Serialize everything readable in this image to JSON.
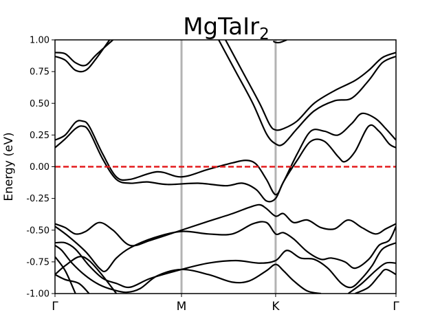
{
  "chart_data": {
    "type": "line",
    "title": "MgTaIr",
    "title_subscript": "2",
    "ylabel": "Energy (eV)",
    "xlabel": "",
    "ylim": [
      -1.0,
      1.0
    ],
    "xlim": [
      0,
      1
    ],
    "y_ticks": [
      "-1.00",
      "-0.75",
      "-0.50",
      "-0.25",
      "0.00",
      "0.25",
      "0.50",
      "0.75",
      "1.00"
    ],
    "y_tick_values": [
      -1.0,
      -0.75,
      -0.5,
      -0.25,
      0.0,
      0.25,
      0.5,
      0.75,
      1.0
    ],
    "k_points": [
      {
        "label": "Γ",
        "x": 0.0
      },
      {
        "label": "M",
        "x": 0.371
      },
      {
        "label": "K",
        "x": 0.647
      },
      {
        "label": "Γ",
        "x": 1.0
      }
    ],
    "fermi_level": 0.0,
    "colors": {
      "bands": "#000000",
      "fermi": "#e41a1c",
      "kpath": "#b3b3b3"
    },
    "grid": false,
    "series": [
      {
        "values": [
          [
            0.0,
            0.9
          ],
          [
            0.03,
            0.89
          ],
          [
            0.06,
            0.82
          ],
          [
            0.09,
            0.8
          ],
          [
            0.12,
            0.88
          ],
          [
            0.17,
            1.0
          ]
        ]
      },
      {
        "values": [
          [
            0.0,
            0.87
          ],
          [
            0.03,
            0.84
          ],
          [
            0.06,
            0.76
          ],
          [
            0.09,
            0.76
          ],
          [
            0.12,
            0.85
          ],
          [
            0.16,
            1.0
          ]
        ]
      },
      {
        "values": [
          [
            0.0,
            0.21
          ],
          [
            0.03,
            0.25
          ],
          [
            0.06,
            0.35
          ],
          [
            0.08,
            0.36
          ],
          [
            0.1,
            0.32
          ],
          [
            0.14,
            0.1
          ],
          [
            0.18,
            -0.08
          ],
          [
            0.22,
            -0.1
          ],
          [
            0.3,
            -0.04
          ],
          [
            0.371,
            -0.08
          ],
          [
            0.45,
            -0.02
          ],
          [
            0.52,
            0.03
          ],
          [
            0.56,
            0.05
          ],
          [
            0.59,
            0.02
          ],
          [
            0.62,
            -0.1
          ],
          [
            0.647,
            -0.22
          ],
          [
            0.67,
            -0.12
          ],
          [
            0.71,
            0.1
          ],
          [
            0.75,
            0.28
          ],
          [
            0.79,
            0.28
          ],
          [
            0.83,
            0.25
          ],
          [
            0.87,
            0.34
          ],
          [
            0.9,
            0.42
          ],
          [
            0.94,
            0.38
          ],
          [
            0.97,
            0.3
          ],
          [
            1.0,
            0.21
          ]
        ]
      },
      {
        "values": [
          [
            0.0,
            0.15
          ],
          [
            0.03,
            0.22
          ],
          [
            0.06,
            0.3
          ],
          [
            0.08,
            0.32
          ],
          [
            0.1,
            0.28
          ],
          [
            0.14,
            0.06
          ],
          [
            0.18,
            -0.1
          ],
          [
            0.22,
            -0.13
          ],
          [
            0.27,
            -0.12
          ],
          [
            0.33,
            -0.14
          ],
          [
            0.42,
            -0.13
          ],
          [
            0.5,
            -0.15
          ],
          [
            0.55,
            -0.13
          ],
          [
            0.59,
            -0.18
          ],
          [
            0.62,
            -0.27
          ],
          [
            0.647,
            -0.25
          ],
          [
            0.67,
            -0.12
          ],
          [
            0.71,
            0.05
          ],
          [
            0.75,
            0.2
          ],
          [
            0.79,
            0.2
          ],
          [
            0.83,
            0.08
          ],
          [
            0.85,
            0.04
          ],
          [
            0.88,
            0.12
          ],
          [
            0.92,
            0.32
          ],
          [
            0.95,
            0.28
          ],
          [
            0.98,
            0.18
          ],
          [
            1.0,
            0.15
          ]
        ]
      },
      {
        "values": [
          [
            0.5,
            1.0
          ],
          [
            0.55,
            0.75
          ],
          [
            0.6,
            0.5
          ],
          [
            0.63,
            0.33
          ],
          [
            0.647,
            0.29
          ],
          [
            0.67,
            0.3
          ],
          [
            0.71,
            0.36
          ],
          [
            0.76,
            0.5
          ],
          [
            0.82,
            0.6
          ],
          [
            0.88,
            0.68
          ],
          [
            0.92,
            0.76
          ],
          [
            0.96,
            0.86
          ],
          [
            1.0,
            0.9
          ]
        ]
      },
      {
        "values": [
          [
            0.48,
            1.0
          ],
          [
            0.53,
            0.75
          ],
          [
            0.58,
            0.5
          ],
          [
            0.62,
            0.26
          ],
          [
            0.647,
            0.18
          ],
          [
            0.67,
            0.18
          ],
          [
            0.71,
            0.3
          ],
          [
            0.76,
            0.44
          ],
          [
            0.82,
            0.52
          ],
          [
            0.87,
            0.54
          ],
          [
            0.92,
            0.68
          ],
          [
            0.96,
            0.82
          ],
          [
            1.0,
            0.87
          ]
        ]
      },
      {
        "values": [
          [
            0.64,
            0.99
          ],
          [
            0.647,
            0.98
          ],
          [
            0.66,
            0.98
          ],
          [
            0.68,
            1.0
          ]
        ]
      },
      {
        "values": [
          [
            0.0,
            -0.45
          ],
          [
            0.03,
            -0.48
          ],
          [
            0.06,
            -0.53
          ],
          [
            0.09,
            -0.51
          ],
          [
            0.13,
            -0.44
          ],
          [
            0.17,
            -0.5
          ],
          [
            0.22,
            -0.62
          ],
          [
            0.28,
            -0.58
          ],
          [
            0.371,
            -0.5
          ],
          [
            0.45,
            -0.43
          ],
          [
            0.52,
            -0.37
          ],
          [
            0.57,
            -0.32
          ],
          [
            0.6,
            -0.3
          ],
          [
            0.62,
            -0.33
          ],
          [
            0.647,
            -0.39
          ],
          [
            0.67,
            -0.37
          ],
          [
            0.7,
            -0.44
          ],
          [
            0.74,
            -0.42
          ],
          [
            0.78,
            -0.48
          ],
          [
            0.82,
            -0.49
          ],
          [
            0.86,
            -0.42
          ],
          [
            0.9,
            -0.48
          ],
          [
            0.94,
            -0.53
          ],
          [
            0.97,
            -0.49
          ],
          [
            1.0,
            -0.45
          ]
        ]
      },
      {
        "values": [
          [
            0.0,
            -0.47
          ],
          [
            0.04,
            -0.55
          ],
          [
            0.09,
            -0.67
          ],
          [
            0.13,
            -0.8
          ],
          [
            0.15,
            -0.82
          ],
          [
            0.18,
            -0.72
          ],
          [
            0.22,
            -0.64
          ],
          [
            0.29,
            -0.56
          ],
          [
            0.371,
            -0.51
          ],
          [
            0.45,
            -0.53
          ],
          [
            0.52,
            -0.53
          ],
          [
            0.58,
            -0.45
          ],
          [
            0.62,
            -0.44
          ],
          [
            0.647,
            -0.53
          ],
          [
            0.67,
            -0.52
          ],
          [
            0.7,
            -0.57
          ],
          [
            0.74,
            -0.67
          ],
          [
            0.78,
            -0.73
          ],
          [
            0.81,
            -0.72
          ],
          [
            0.85,
            -0.75
          ],
          [
            0.88,
            -0.8
          ],
          [
            0.92,
            -0.73
          ],
          [
            0.95,
            -0.62
          ],
          [
            0.98,
            -0.58
          ],
          [
            1.0,
            -0.47
          ]
        ]
      },
      {
        "values": [
          [
            0.0,
            -0.6
          ],
          [
            0.03,
            -0.6
          ],
          [
            0.06,
            -0.65
          ],
          [
            0.1,
            -0.78
          ],
          [
            0.14,
            -0.88
          ],
          [
            0.18,
            -0.92
          ],
          [
            0.22,
            -0.95
          ],
          [
            0.28,
            -0.88
          ],
          [
            0.371,
            -0.81
          ],
          [
            0.45,
            -0.76
          ],
          [
            0.53,
            -0.74
          ],
          [
            0.6,
            -0.76
          ],
          [
            0.647,
            -0.74
          ],
          [
            0.68,
            -0.66
          ],
          [
            0.72,
            -0.72
          ],
          [
            0.76,
            -0.73
          ],
          [
            0.8,
            -0.8
          ],
          [
            0.84,
            -0.92
          ],
          [
            0.87,
            -0.95
          ],
          [
            0.9,
            -0.88
          ],
          [
            0.93,
            -0.78
          ],
          [
            0.96,
            -0.65
          ],
          [
            1.0,
            -0.6
          ]
        ]
      },
      {
        "values": [
          [
            0.0,
            -0.62
          ],
          [
            0.02,
            -0.66
          ],
          [
            0.05,
            -0.76
          ],
          [
            0.09,
            -0.86
          ],
          [
            0.13,
            -0.93
          ],
          [
            0.17,
            -0.97
          ],
          [
            0.21,
            -0.99
          ],
          [
            0.25,
            -0.96
          ],
          [
            0.3,
            -0.86
          ],
          [
            0.371,
            -0.81
          ],
          [
            0.45,
            -0.85
          ],
          [
            0.52,
            -0.91
          ],
          [
            0.57,
            -0.9
          ],
          [
            0.62,
            -0.82
          ],
          [
            0.647,
            -0.77
          ],
          [
            0.67,
            -0.82
          ],
          [
            0.7,
            -0.9
          ],
          [
            0.74,
            -0.98
          ],
          [
            0.78,
            -1.0
          ]
        ]
      },
      {
        "values": [
          [
            0.0,
            -0.85
          ],
          [
            0.03,
            -0.78
          ],
          [
            0.07,
            -0.71
          ],
          [
            0.1,
            -0.74
          ],
          [
            0.14,
            -0.86
          ],
          [
            0.18,
            -1.0
          ]
        ]
      },
      {
        "values": [
          [
            0.0,
            -0.85
          ],
          [
            0.03,
            -0.89
          ],
          [
            0.07,
            -0.92
          ],
          [
            0.1,
            -1.0
          ]
        ]
      },
      {
        "values": [
          [
            0.0,
            -0.71
          ],
          [
            0.03,
            -0.82
          ],
          [
            0.06,
            -1.0
          ]
        ]
      },
      {
        "values": [
          [
            0.86,
            -1.0
          ],
          [
            0.9,
            -0.92
          ],
          [
            0.94,
            -0.82
          ],
          [
            0.97,
            -0.76
          ],
          [
            1.0,
            -0.76
          ]
        ]
      },
      {
        "values": [
          [
            0.88,
            -1.0
          ],
          [
            0.92,
            -0.95
          ],
          [
            0.95,
            -0.86
          ],
          [
            0.97,
            -0.81
          ],
          [
            1.0,
            -0.85
          ]
        ]
      }
    ]
  }
}
